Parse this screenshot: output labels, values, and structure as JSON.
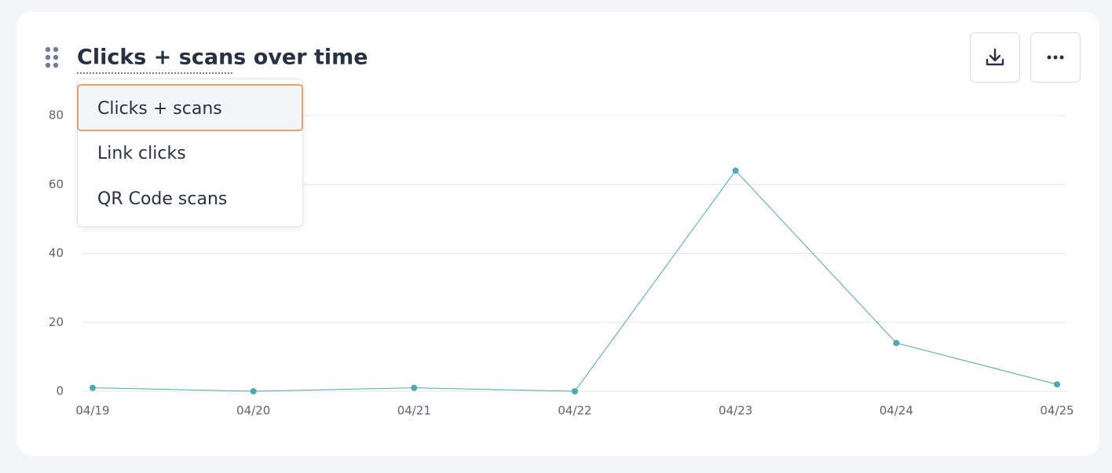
{
  "chart_data": {
    "type": "line",
    "title": "Clicks + scans over time",
    "categories": [
      "04/19",
      "04/20",
      "04/21",
      "04/22",
      "04/23",
      "04/24",
      "04/25"
    ],
    "values": [
      1,
      0,
      1,
      0,
      64,
      14,
      2
    ],
    "color": "#4aa9b3",
    "ylim": [
      0,
      80
    ],
    "yticks": [
      0,
      20,
      40,
      60,
      80
    ],
    "grid": true
  },
  "menu": {
    "items": [
      "Clicks + scans",
      "Link clicks",
      "QR Code scans"
    ]
  }
}
